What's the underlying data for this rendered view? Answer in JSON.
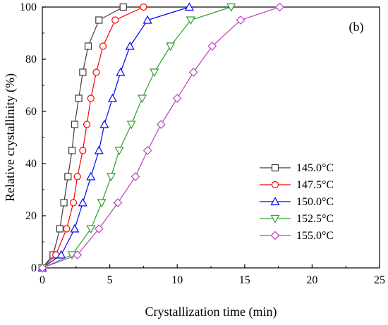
{
  "chart_data": {
    "type": "line",
    "panel_label": "(b)",
    "xlabel": "Crystallization time (min)",
    "ylabel": "Relative crystallinity (%)",
    "xlim": [
      0,
      25
    ],
    "ylim": [
      0,
      100
    ],
    "xticks": [
      0,
      5,
      10,
      15,
      20,
      25
    ],
    "yticks": [
      0,
      20,
      40,
      60,
      80,
      100
    ],
    "grid": false,
    "legend_position": "bottom-right",
    "series": [
      {
        "name": "145.0°C",
        "color": "#3c3c3c",
        "marker": "square",
        "points": [
          [
            0,
            0
          ],
          [
            0.8,
            5
          ],
          [
            1.3,
            15
          ],
          [
            1.6,
            25
          ],
          [
            1.9,
            35
          ],
          [
            2.2,
            45
          ],
          [
            2.4,
            55
          ],
          [
            2.7,
            65
          ],
          [
            3.0,
            75
          ],
          [
            3.4,
            85
          ],
          [
            4.2,
            95
          ],
          [
            6.0,
            100
          ]
        ]
      },
      {
        "name": "147.5°C",
        "color": "#ff0000",
        "marker": "circle",
        "points": [
          [
            0,
            0
          ],
          [
            1.0,
            5
          ],
          [
            1.8,
            15
          ],
          [
            2.3,
            25
          ],
          [
            2.6,
            35
          ],
          [
            3.0,
            45
          ],
          [
            3.3,
            55
          ],
          [
            3.6,
            65
          ],
          [
            4.0,
            75
          ],
          [
            4.5,
            85
          ],
          [
            5.4,
            95
          ],
          [
            7.5,
            100
          ]
        ]
      },
      {
        "name": "150.0°C",
        "color": "#0000ff",
        "marker": "triangle-up",
        "points": [
          [
            0,
            0
          ],
          [
            1.4,
            5
          ],
          [
            2.4,
            15
          ],
          [
            3.0,
            25
          ],
          [
            3.6,
            35
          ],
          [
            4.2,
            45
          ],
          [
            4.6,
            55
          ],
          [
            5.2,
            65
          ],
          [
            5.8,
            75
          ],
          [
            6.5,
            85
          ],
          [
            7.8,
            95
          ],
          [
            10.9,
            100
          ]
        ]
      },
      {
        "name": "152.5°C",
        "color": "#2ca02c",
        "marker": "triangle-down",
        "points": [
          [
            0,
            0
          ],
          [
            2.2,
            5
          ],
          [
            3.6,
            15
          ],
          [
            4.4,
            25
          ],
          [
            5.1,
            35
          ],
          [
            5.7,
            45
          ],
          [
            6.6,
            55
          ],
          [
            7.4,
            65
          ],
          [
            8.3,
            75
          ],
          [
            9.5,
            85
          ],
          [
            11.0,
            95
          ],
          [
            14.0,
            100
          ]
        ]
      },
      {
        "name": "155.0°C",
        "color": "#bf3fbf",
        "marker": "diamond",
        "points": [
          [
            0,
            0
          ],
          [
            2.6,
            5
          ],
          [
            4.2,
            15
          ],
          [
            5.6,
            25
          ],
          [
            6.9,
            35
          ],
          [
            7.8,
            45
          ],
          [
            8.8,
            55
          ],
          [
            10.0,
            65
          ],
          [
            11.2,
            75
          ],
          [
            12.6,
            85
          ],
          [
            14.7,
            95
          ],
          [
            17.6,
            100
          ]
        ]
      }
    ]
  }
}
